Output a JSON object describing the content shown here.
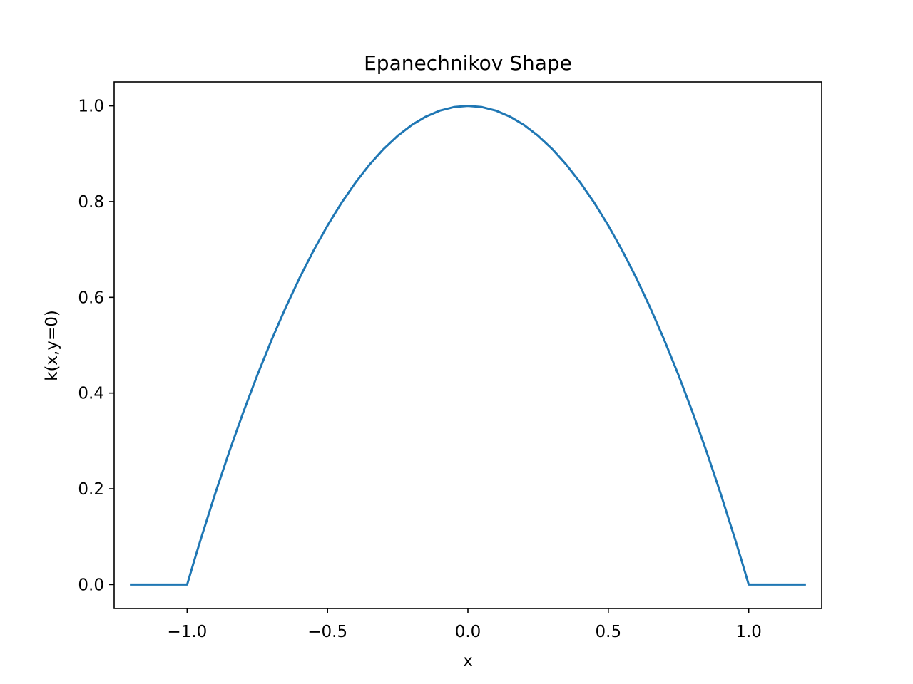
{
  "chart_data": {
    "type": "line",
    "title": "Epanechnikov Shape",
    "xlabel": "x",
    "ylabel": "k(x,y=0)",
    "xlim": [
      -1.26,
      1.26
    ],
    "ylim": [
      -0.05,
      1.05
    ],
    "xticks": [
      -1.0,
      -0.5,
      0.0,
      0.5,
      1.0
    ],
    "xtick_labels": [
      "−1.0",
      "−0.5",
      "0.0",
      "0.5",
      "1.0"
    ],
    "yticks": [
      0.0,
      0.2,
      0.4,
      0.6,
      0.8,
      1.0
    ],
    "ytick_labels": [
      "0.0",
      "0.2",
      "0.4",
      "0.6",
      "0.8",
      "1.0"
    ],
    "grid": false,
    "series": [
      {
        "color": "#1f77b4",
        "x": [
          -1.2,
          -1.15,
          -1.1,
          -1.05,
          -1.0,
          -0.975,
          -0.95,
          -0.9,
          -0.85,
          -0.8,
          -0.75,
          -0.7,
          -0.65,
          -0.6,
          -0.55,
          -0.5,
          -0.45,
          -0.4,
          -0.35,
          -0.3,
          -0.25,
          -0.2,
          -0.15,
          -0.1,
          -0.05,
          0.0,
          0.05,
          0.1,
          0.15,
          0.2,
          0.25,
          0.3,
          0.35,
          0.4,
          0.45,
          0.5,
          0.55,
          0.6,
          0.65,
          0.7,
          0.75,
          0.8,
          0.85,
          0.9,
          0.95,
          0.975,
          1.0,
          1.05,
          1.1,
          1.15,
          1.2
        ],
        "y": [
          0.0,
          0.0,
          0.0,
          0.0,
          0.0,
          0.0494,
          0.0975,
          0.19,
          0.2775,
          0.36,
          0.4375,
          0.51,
          0.5775,
          0.64,
          0.6975,
          0.75,
          0.7975,
          0.84,
          0.8775,
          0.91,
          0.9375,
          0.96,
          0.9775,
          0.99,
          0.9975,
          1.0,
          0.9975,
          0.99,
          0.9775,
          0.96,
          0.9375,
          0.91,
          0.8775,
          0.84,
          0.7975,
          0.75,
          0.6975,
          0.64,
          0.5775,
          0.51,
          0.4375,
          0.36,
          0.2775,
          0.19,
          0.0975,
          0.0494,
          0.0,
          0.0,
          0.0,
          0.0,
          0.0
        ]
      }
    ]
  }
}
